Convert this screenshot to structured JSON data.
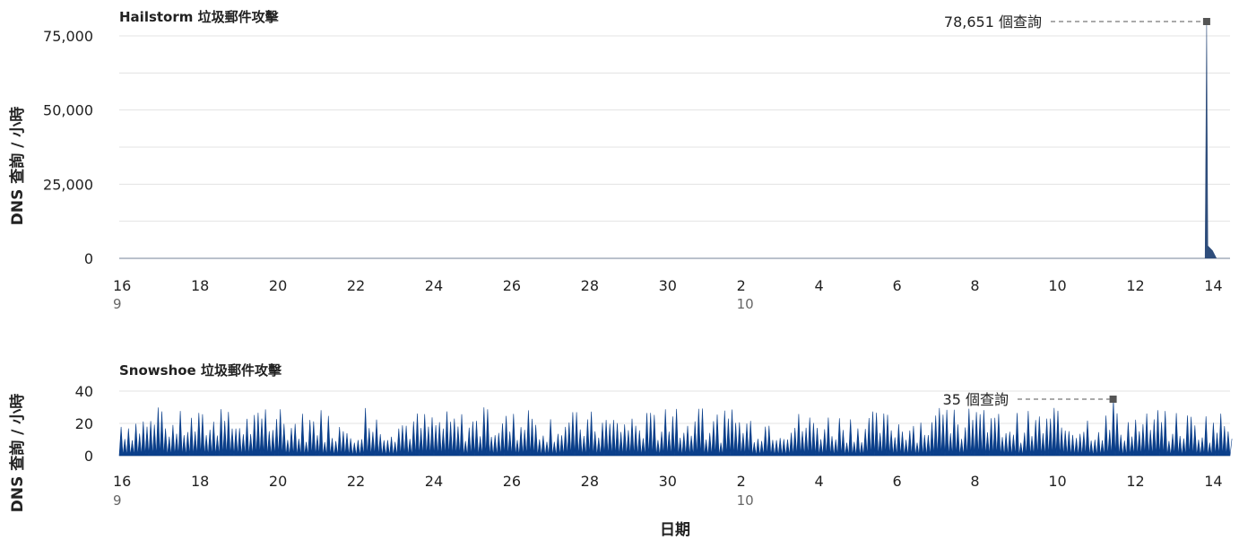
{
  "chart_data": [
    {
      "type": "area",
      "title": "Hailstorm 垃圾郵件攻擊",
      "ylabel": "DNS 查詢 / 小時",
      "xlabel": "",
      "ylim": [
        0,
        80000
      ],
      "y_ticks": [
        0,
        25000,
        50000,
        75000
      ],
      "y_tick_labels": [
        "0",
        "25,000",
        "50,000",
        "75,000"
      ],
      "x_range": [
        "2023-09-16",
        "2023-10-14 12:00"
      ],
      "x_tick_labels": [
        "16",
        "18",
        "20",
        "22",
        "24",
        "26",
        "28",
        "30",
        "2",
        "4",
        "6",
        "8",
        "10",
        "12",
        "14"
      ],
      "month_labels": [
        {
          "label": "9",
          "under": "16"
        },
        {
          "label": "10",
          "under": "2"
        }
      ],
      "color": "#2e4d7b",
      "series": [
        {
          "values": [
            [
              0,
              0
            ],
            [
              27.86,
              0
            ],
            [
              27.9,
              78651
            ],
            [
              27.93,
              4200
            ],
            [
              28.05,
              2600
            ],
            [
              28.15,
              0
            ]
          ]
        }
      ],
      "annotation": {
        "x": 27.9,
        "y": 78651,
        "text": "78,651 個查詢"
      }
    },
    {
      "type": "area",
      "title": "Snowshoe 垃圾郵件攻擊",
      "ylabel": "DNS 查詢 / 小時",
      "xlabel": "日期",
      "ylim": [
        0,
        40
      ],
      "y_ticks": [
        0,
        20,
        40
      ],
      "y_tick_labels": [
        "0",
        "20",
        "40"
      ],
      "x_range": [
        "2023-09-16",
        "2023-10-14 12:00"
      ],
      "x_tick_labels": [
        "16",
        "18",
        "20",
        "22",
        "24",
        "26",
        "28",
        "30",
        "2",
        "4",
        "6",
        "8",
        "10",
        "12",
        "14"
      ],
      "month_labels": [
        {
          "label": "9",
          "under": "16"
        },
        {
          "label": "10",
          "under": "2"
        }
      ],
      "color": "#0b3f8a",
      "series": [
        {
          "pattern": "spiky",
          "typical_range": [
            8,
            28
          ],
          "peak": 35
        }
      ],
      "annotation": {
        "x": 25.5,
        "y": 35,
        "text": "35 個查詢"
      }
    }
  ]
}
